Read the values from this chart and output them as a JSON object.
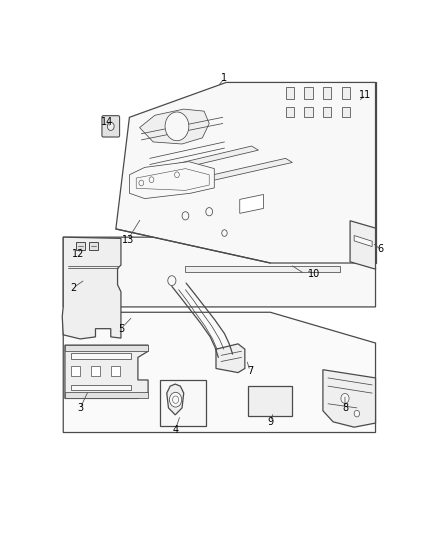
{
  "bg_color": "#ffffff",
  "line_color": "#4a4a4a",
  "lw_main": 0.9,
  "lw_thin": 0.55,
  "fig_width": 4.38,
  "fig_height": 5.33,
  "dpi": 100,
  "label_fontsize": 7.0,
  "leaders": {
    "1": [
      0.5,
      0.965,
      0.48,
      0.945
    ],
    "2": [
      0.055,
      0.455,
      0.09,
      0.475
    ],
    "3": [
      0.075,
      0.162,
      0.1,
      0.205
    ],
    "4": [
      0.355,
      0.108,
      0.37,
      0.145
    ],
    "5": [
      0.195,
      0.355,
      0.23,
      0.385
    ],
    "6": [
      0.96,
      0.548,
      0.935,
      0.565
    ],
    "7": [
      0.575,
      0.252,
      0.565,
      0.28
    ],
    "8": [
      0.855,
      0.162,
      0.855,
      0.195
    ],
    "9": [
      0.635,
      0.128,
      0.645,
      0.152
    ],
    "10": [
      0.765,
      0.488,
      0.74,
      0.498
    ],
    "11": [
      0.915,
      0.925,
      0.895,
      0.908
    ],
    "12": [
      0.068,
      0.538,
      0.082,
      0.555
    ],
    "13": [
      0.215,
      0.572,
      0.255,
      0.625
    ],
    "14": [
      0.155,
      0.858,
      0.165,
      0.845
    ]
  }
}
